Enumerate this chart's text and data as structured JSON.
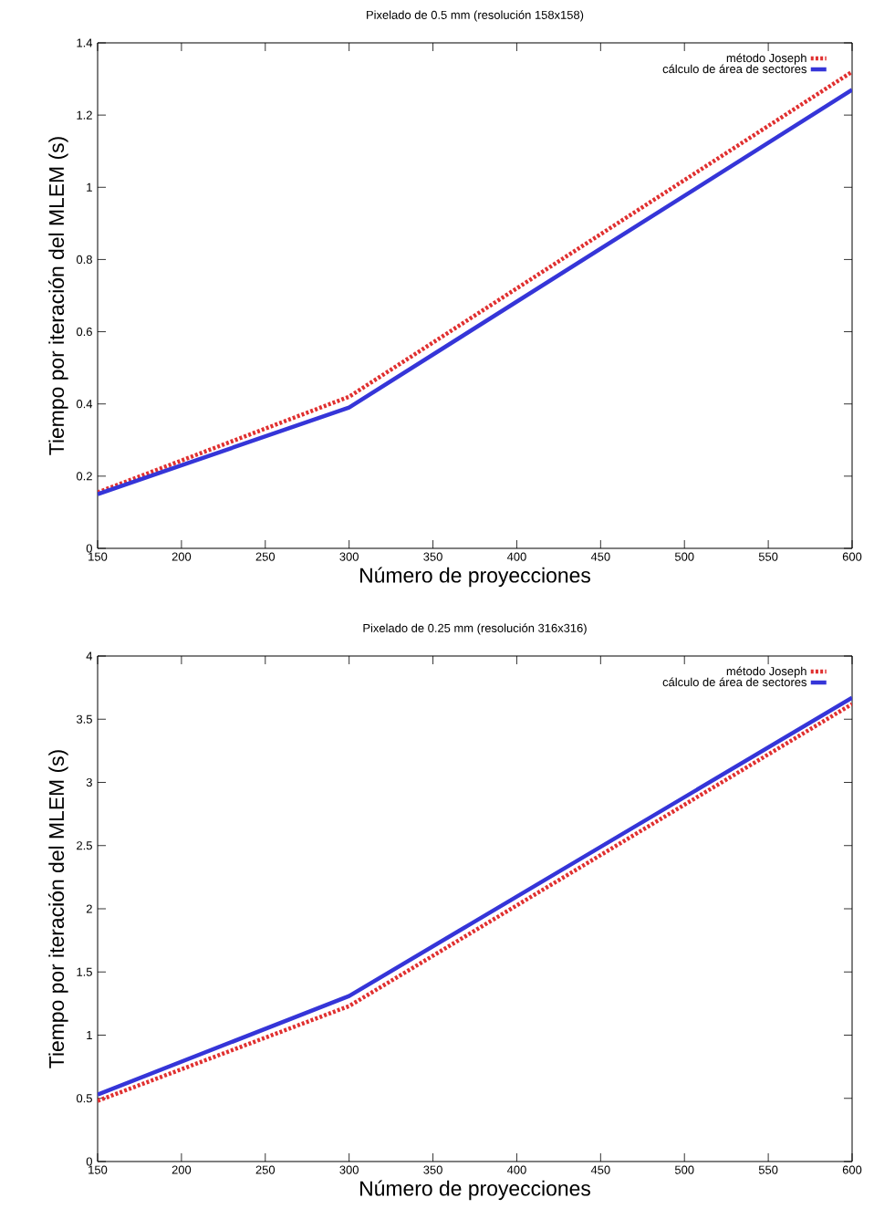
{
  "chart_data": [
    {
      "type": "line",
      "title": "Pixelado de 0.5 mm (resolución 158x158)",
      "xlabel": "Número de proyecciones",
      "ylabel": "Tiempo por iteración del MLEM (s)",
      "x": [
        150,
        300,
        600
      ],
      "series": [
        {
          "name": "método Joseph",
          "color": "#e03030",
          "line_style": "dotted",
          "values": [
            0.155,
            0.42,
            1.32
          ]
        },
        {
          "name": "cálculo de área de sectores",
          "color": "#3535d8",
          "line_style": "solid",
          "values": [
            0.15,
            0.39,
            1.27
          ]
        }
      ],
      "xlim": [
        150,
        600
      ],
      "ylim": [
        0,
        1.4
      ],
      "xticks": [
        150,
        200,
        250,
        300,
        350,
        400,
        450,
        500,
        550,
        600
      ],
      "yticks": [
        0,
        0.2,
        0.4,
        0.6,
        0.8,
        1,
        1.2,
        1.4
      ],
      "legend": "top right"
    },
    {
      "type": "line",
      "title": "Pixelado de 0.25 mm (resolución 316x316)",
      "xlabel": "Número de proyecciones",
      "ylabel": "Tiempo por iteración del MLEM (s)",
      "x": [
        150,
        300,
        600
      ],
      "series": [
        {
          "name": "método Joseph",
          "color": "#e03030",
          "line_style": "dotted",
          "values": [
            0.48,
            1.23,
            3.62
          ]
        },
        {
          "name": "cálculo de área de sectores",
          "color": "#3535d8",
          "line_style": "solid",
          "values": [
            0.53,
            1.31,
            3.67
          ]
        }
      ],
      "xlim": [
        150,
        600
      ],
      "ylim": [
        0,
        4
      ],
      "xticks": [
        150,
        200,
        250,
        300,
        350,
        400,
        450,
        500,
        550,
        600
      ],
      "yticks": [
        0,
        0.5,
        1,
        1.5,
        2,
        2.5,
        3,
        3.5,
        4
      ],
      "legend": "top right"
    }
  ]
}
